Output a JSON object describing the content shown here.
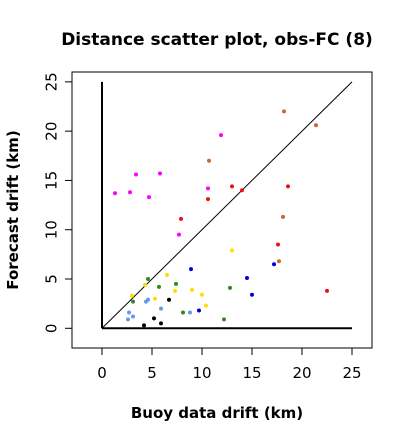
{
  "chart_data": {
    "type": "scatter",
    "title": "Distance scatter plot, obs-FC (8)",
    "xlabel": "Buoy data drift (km)",
    "ylabel": "Forecast drift (km)",
    "xlim": [
      -3,
      27
    ],
    "ylim": [
      -2,
      26
    ],
    "xticks": [
      0,
      5,
      10,
      15,
      20,
      25
    ],
    "yticks": [
      0,
      5,
      10,
      15,
      20,
      25
    ],
    "reference_line": "y = x",
    "colors": {
      "magenta": "#ff00ff",
      "red": "#ee1111",
      "orange": "#cc6633",
      "yellow": "#ffdd00",
      "green": "#338822",
      "blue": "#0000dd",
      "light_blue": "#6699ee",
      "black": "#000000"
    },
    "series": [
      {
        "color": "#ff00ff",
        "points": [
          [
            1.3,
            13.7
          ],
          [
            2.8,
            13.8
          ],
          [
            3.4,
            15.6
          ],
          [
            4.7,
            13.3
          ],
          [
            5.8,
            15.7
          ],
          [
            7.7,
            9.5
          ],
          [
            10.6,
            14.2
          ],
          [
            11.9,
            19.6
          ]
        ]
      },
      {
        "color": "#ee1111",
        "points": [
          [
            7.9,
            11.1
          ],
          [
            10.6,
            13.1
          ],
          [
            13.0,
            14.4
          ],
          [
            14.0,
            14.0
          ],
          [
            17.6,
            8.5
          ],
          [
            18.6,
            14.4
          ],
          [
            22.5,
            3.8
          ]
        ]
      },
      {
        "color": "#cc6633",
        "points": [
          [
            10.7,
            17.0
          ],
          [
            17.7,
            6.8
          ],
          [
            18.1,
            11.3
          ],
          [
            18.2,
            22.0
          ],
          [
            21.4,
            20.6
          ]
        ]
      },
      {
        "color": "#ffdd00",
        "points": [
          [
            3.0,
            3.3
          ],
          [
            4.3,
            4.4
          ],
          [
            5.3,
            3.0
          ],
          [
            6.5,
            5.4
          ],
          [
            7.3,
            3.8
          ],
          [
            9.0,
            3.9
          ],
          [
            10.0,
            3.4
          ],
          [
            10.4,
            2.3
          ],
          [
            13.0,
            7.9
          ]
        ]
      },
      {
        "color": "#338822",
        "points": [
          [
            3.1,
            2.7
          ],
          [
            4.6,
            5.0
          ],
          [
            5.7,
            4.2
          ],
          [
            7.4,
            4.5
          ],
          [
            8.1,
            1.6
          ],
          [
            12.2,
            0.9
          ],
          [
            12.8,
            4.1
          ]
        ]
      },
      {
        "color": "#0000dd",
        "points": [
          [
            8.9,
            6.0
          ],
          [
            9.7,
            1.8
          ],
          [
            14.5,
            5.1
          ],
          [
            15.0,
            3.4
          ],
          [
            17.2,
            6.5
          ]
        ]
      },
      {
        "color": "#6699ee",
        "points": [
          [
            2.6,
            0.9
          ],
          [
            2.7,
            1.6
          ],
          [
            3.1,
            1.2
          ],
          [
            4.4,
            2.7
          ],
          [
            4.6,
            2.9
          ],
          [
            5.9,
            2.0
          ],
          [
            8.8,
            1.6
          ]
        ]
      },
      {
        "color": "#000000",
        "points": [
          [
            4.2,
            0.3
          ],
          [
            5.2,
            1.0
          ],
          [
            5.9,
            0.5
          ],
          [
            6.7,
            2.9
          ]
        ]
      }
    ]
  }
}
